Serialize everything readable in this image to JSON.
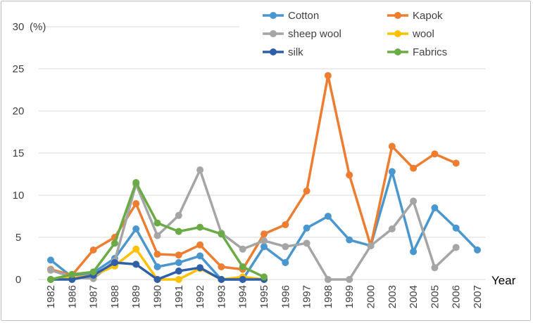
{
  "chart_data": {
    "type": "line",
    "y_unit_label": "(%)",
    "xlabel": "Year",
    "ylim": [
      0,
      30
    ],
    "yticks": [
      0,
      5,
      10,
      15,
      20,
      25,
      30
    ],
    "grid": true,
    "legend_position": "top-right",
    "categories": [
      "1982",
      "1986",
      "1987",
      "1988",
      "1989",
      "1990",
      "1991",
      "1992",
      "1993",
      "1994",
      "1995",
      "1996",
      "1997",
      "1998",
      "1999",
      "2000",
      "2003",
      "2004",
      "2005",
      "2006",
      "2007"
    ],
    "series": [
      {
        "name": "Cotton",
        "color": "#4a97cf",
        "values": [
          2.3,
          0.3,
          0.8,
          2.5,
          6.0,
          1.5,
          2.0,
          2.8,
          0,
          0,
          3.9,
          2.0,
          6.1,
          7.5,
          4.7,
          4.0,
          12.8,
          3.3,
          8.5,
          6.1,
          3.5
        ]
      },
      {
        "name": "Kapok",
        "color": "#ed7d31",
        "values": [
          1.2,
          0.5,
          3.5,
          5.0,
          9.0,
          3.0,
          2.9,
          4.1,
          1.5,
          1.2,
          5.4,
          6.5,
          10.5,
          24.2,
          12.4,
          4.0,
          15.8,
          13.2,
          14.9,
          13.8,
          null
        ]
      },
      {
        "name": "sheep wool",
        "color": "#a5a5a5",
        "values": [
          1.1,
          0.3,
          0.1,
          2.2,
          11.3,
          5.2,
          7.6,
          13.0,
          5.5,
          3.6,
          4.6,
          3.9,
          4.3,
          0,
          0,
          4.0,
          6.0,
          9.3,
          1.4,
          3.8,
          null
        ]
      },
      {
        "name": "wool",
        "color": "#ffc000",
        "values": [
          0,
          0.2,
          0.5,
          1.6,
          3.6,
          0,
          0,
          1.3,
          0,
          0.3,
          0,
          null,
          null,
          null,
          null,
          null,
          null,
          null,
          null,
          null,
          null
        ]
      },
      {
        "name": "silk",
        "color": "#2e5fa8",
        "values": [
          0,
          0,
          0.5,
          2.0,
          1.8,
          0,
          1.0,
          1.4,
          0,
          0,
          0,
          null,
          null,
          null,
          null,
          null,
          null,
          null,
          null,
          null,
          null
        ]
      },
      {
        "name": "Fabrics",
        "color": "#6bab45",
        "values": [
          0,
          0.6,
          0.9,
          4.3,
          11.5,
          6.7,
          5.7,
          6.2,
          5.4,
          1.5,
          0.3,
          null,
          null,
          null,
          null,
          null,
          null,
          null,
          null,
          null,
          null
        ]
      }
    ]
  }
}
